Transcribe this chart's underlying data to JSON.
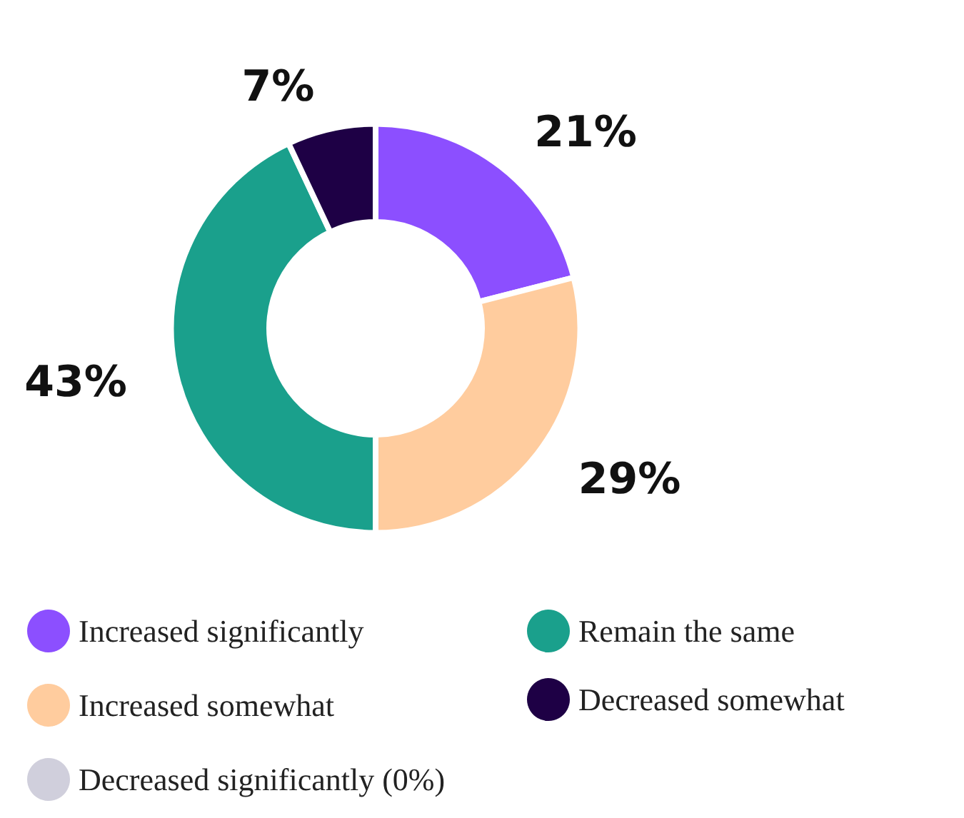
{
  "chart_data": {
    "type": "donut",
    "categories": [
      "Increased significantly",
      "Increased somewhat",
      "Remain the same",
      "Decreased somewhat",
      "Decreased significantly (0%)"
    ],
    "values": [
      21,
      29,
      43,
      7,
      0
    ],
    "colors": [
      "#8c4fff",
      "#ffcc9e",
      "#1aa08c",
      "#1e0045",
      "#d0cfdc"
    ],
    "value_labels": [
      "21%",
      "29%",
      "43%",
      "7%",
      null
    ],
    "legend": "bottom"
  }
}
